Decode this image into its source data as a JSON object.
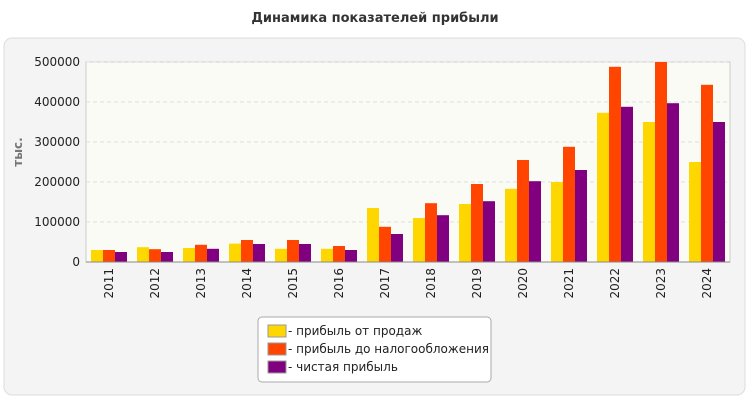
{
  "chart_data": {
    "type": "bar",
    "title": "Динамика показателей прибыли",
    "y_label": "тыс.",
    "categories": [
      "2011",
      "2012",
      "2013",
      "2014",
      "2015",
      "2016",
      "2017",
      "2018",
      "2019",
      "2020",
      "2021",
      "2022",
      "2023",
      "2024"
    ],
    "series": [
      {
        "name": "- прибыль от продаж",
        "color": "#ffd700",
        "values": [
          30000,
          37000,
          35000,
          46000,
          33000,
          33000,
          135000,
          110000,
          145000,
          183000,
          200000,
          373000,
          350000,
          250000
        ]
      },
      {
        "name": "- прибыль до налогообложения",
        "color": "#ff4500",
        "values": [
          30000,
          32000,
          43000,
          55000,
          55000,
          40000,
          88000,
          147000,
          195000,
          255000,
          288000,
          488000,
          500000,
          443000
        ]
      },
      {
        "name": "- чистая прибыль",
        "color": "#800080",
        "values": [
          25000,
          25000,
          33000,
          45000,
          45000,
          30000,
          70000,
          117000,
          152000,
          202000,
          230000,
          388000,
          397000,
          350000
        ]
      }
    ],
    "ylim": [
      0,
      500000
    ],
    "yticks": [
      0,
      100000,
      200000,
      300000,
      400000,
      500000
    ],
    "grid": true
  }
}
